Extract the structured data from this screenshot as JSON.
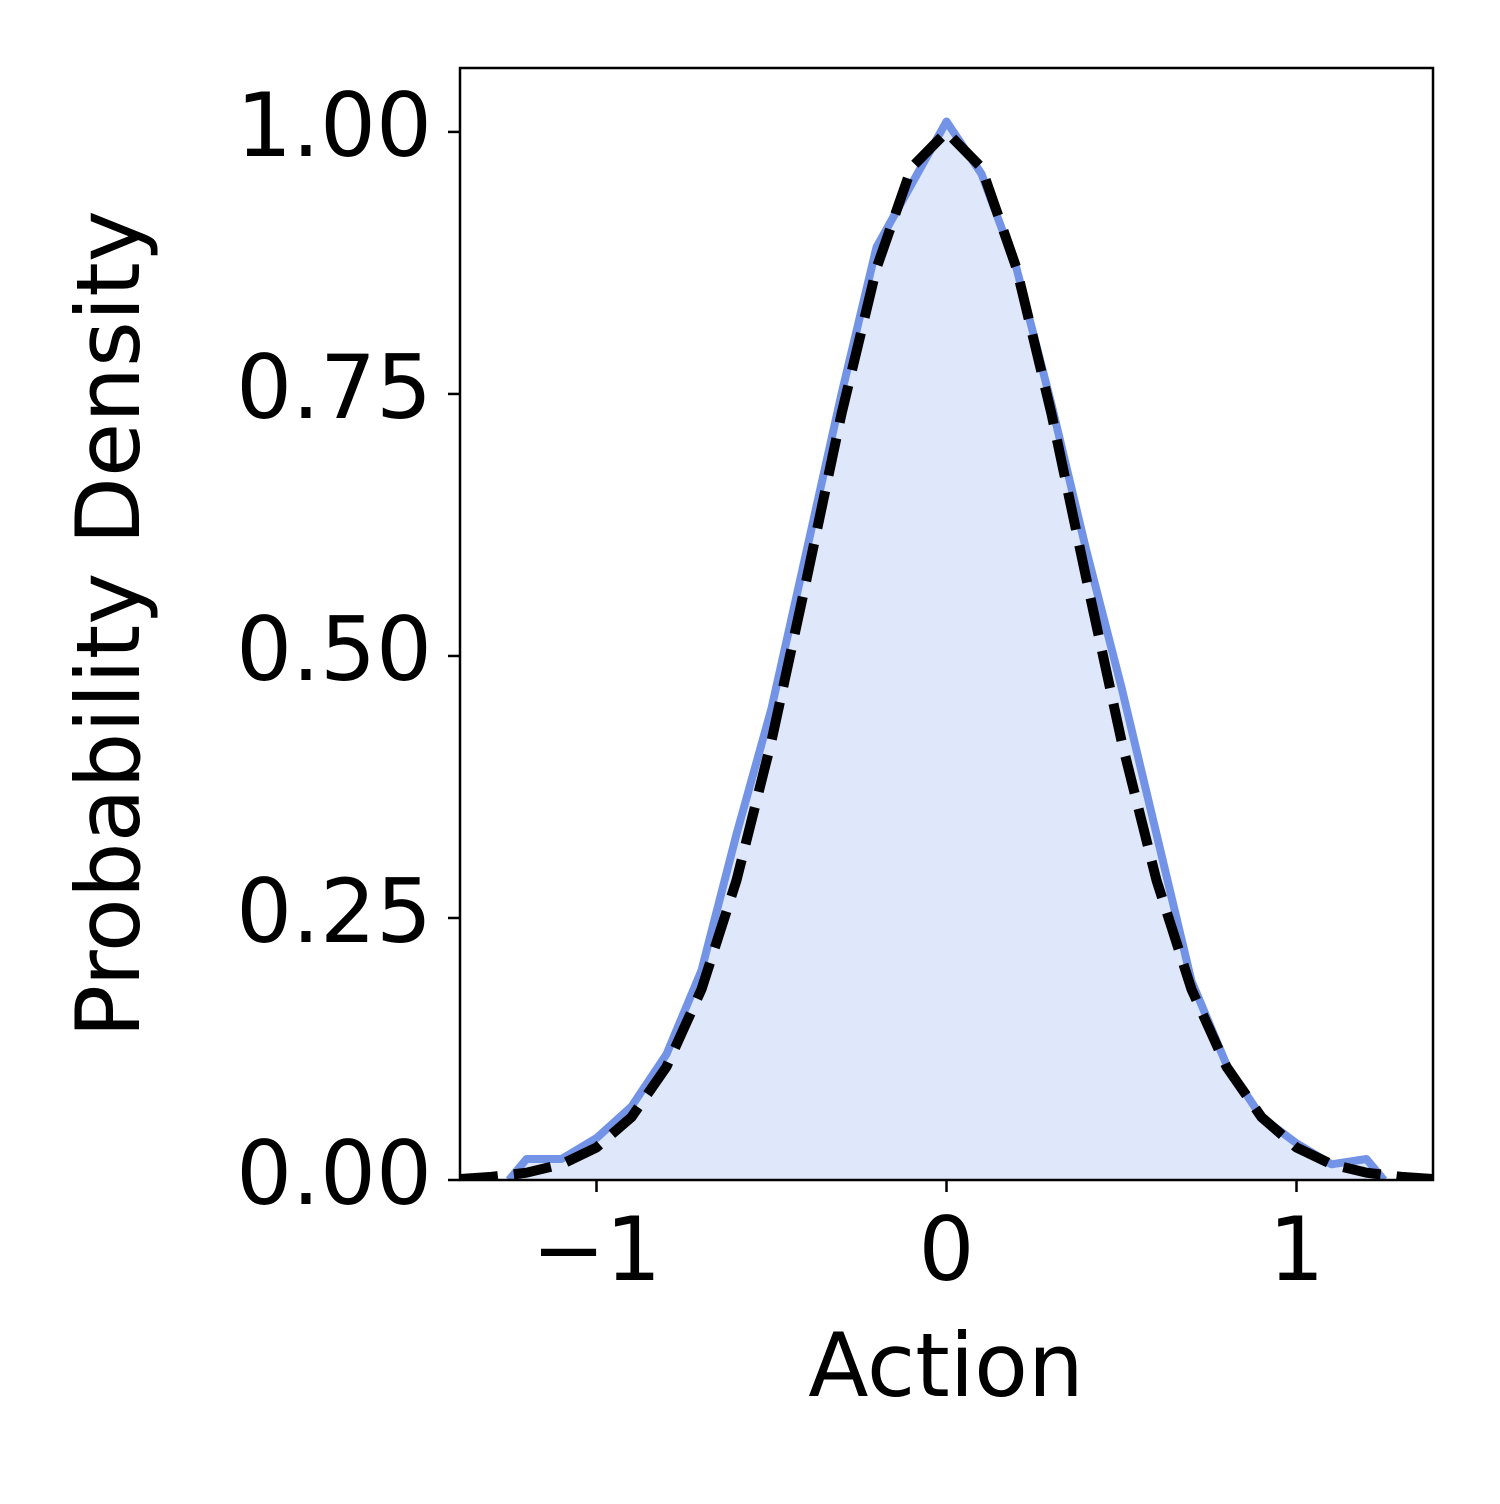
{
  "chart_data": {
    "type": "line",
    "xlabel": "Action",
    "ylabel": "Probability Density",
    "xlim": [
      -1.39,
      1.39
    ],
    "ylim": [
      0,
      1.061
    ],
    "xticks": [
      {
        "value": -1,
        "label": "−1"
      },
      0,
      1
    ],
    "yticks": [
      {
        "value": 0,
        "label": "0.00"
      },
      {
        "value": 0.25,
        "label": "0.25"
      },
      {
        "value": 0.5,
        "label": "0.50"
      },
      {
        "value": 0.75,
        "label": "0.75"
      },
      {
        "value": 1,
        "label": "1.00"
      }
    ],
    "series": [
      {
        "color": "#7394e6",
        "fill": "#dfe8fa",
        "style": "solid",
        "x": [
          -1.25,
          -1.2,
          -1.1,
          -1.0,
          -0.9,
          -0.8,
          -0.7,
          -0.6,
          -0.5,
          -0.4,
          -0.3,
          -0.2,
          -0.1,
          0,
          0.1,
          0.2,
          0.3,
          0.4,
          0.5,
          0.6,
          0.7,
          0.8,
          0.9,
          1.0,
          1.1,
          1.2,
          1.25
        ],
        "values": [
          0,
          0.02,
          0.02,
          0.04,
          0.07,
          0.12,
          0.2,
          0.33,
          0.45,
          0.6,
          0.75,
          0.89,
          0.95,
          1.01,
          0.96,
          0.87,
          0.74,
          0.6,
          0.47,
          0.33,
          0.19,
          0.11,
          0.06,
          0.035,
          0.015,
          0.02,
          0
        ]
      },
      {
        "color": "#000000",
        "style": "dashed",
        "x": [
          -1.39,
          -1.3,
          -1.2,
          -1.1,
          -1.0,
          -0.9,
          -0.8,
          -0.7,
          -0.6,
          -0.5,
          -0.4,
          -0.3,
          -0.2,
          -0.1,
          0,
          0.1,
          0.2,
          0.3,
          0.4,
          0.5,
          0.6,
          0.7,
          0.8,
          0.9,
          1.0,
          1.1,
          1.2,
          1.3,
          1.39
        ],
        "values": [
          0.001,
          0.003,
          0.007,
          0.015,
          0.031,
          0.06,
          0.108,
          0.182,
          0.286,
          0.419,
          0.573,
          0.731,
          0.87,
          0.966,
          1,
          0.966,
          0.87,
          0.731,
          0.573,
          0.419,
          0.286,
          0.182,
          0.108,
          0.06,
          0.031,
          0.015,
          0.007,
          0.003,
          0.001
        ]
      }
    ]
  }
}
